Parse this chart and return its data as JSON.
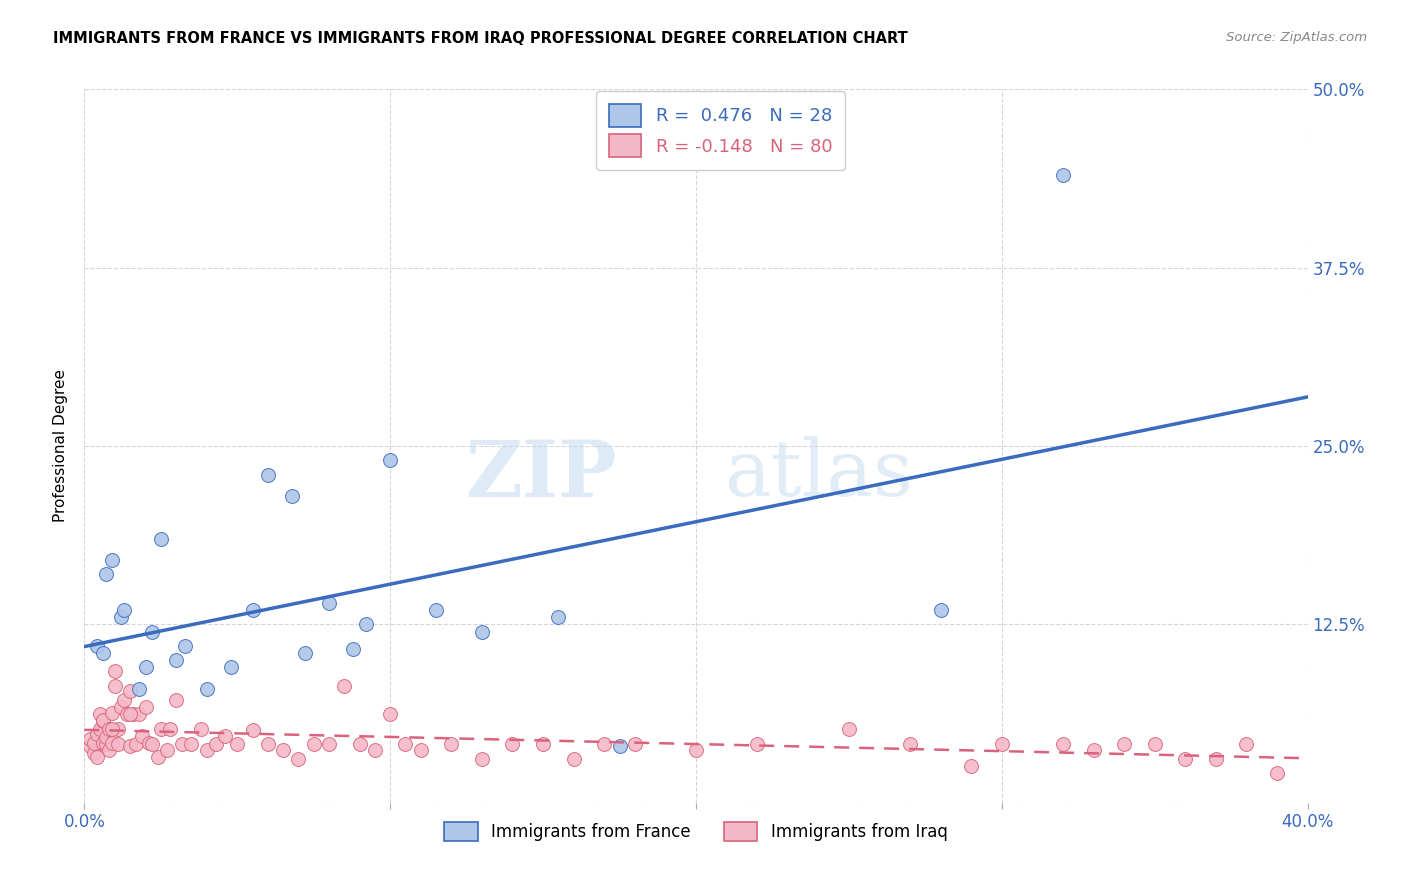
{
  "title": "IMMIGRANTS FROM FRANCE VS IMMIGRANTS FROM IRAQ PROFESSIONAL DEGREE CORRELATION CHART",
  "source": "Source: ZipAtlas.com",
  "ylabel": "Professional Degree",
  "xlim": [
    0.0,
    0.4
  ],
  "ylim": [
    0.0,
    0.5
  ],
  "xtick_vals": [
    0.0,
    0.1,
    0.2,
    0.3,
    0.4
  ],
  "ytick_vals": [
    0.0,
    0.125,
    0.25,
    0.375,
    0.5
  ],
  "ytick_labels": [
    "",
    "12.5%",
    "25.0%",
    "37.5%",
    "50.0%"
  ],
  "france_color": "#aec6e8",
  "france_line_color": "#3a6bbf",
  "iraq_color": "#f4b8c8",
  "iraq_line_color": "#d9637a",
  "france_R": 0.476,
  "france_N": 28,
  "iraq_R": -0.148,
  "iraq_N": 80,
  "france_x": [
    0.004,
    0.006,
    0.007,
    0.009,
    0.012,
    0.013,
    0.018,
    0.02,
    0.022,
    0.025,
    0.03,
    0.033,
    0.04,
    0.048,
    0.055,
    0.06,
    0.068,
    0.072,
    0.08,
    0.088,
    0.092,
    0.1,
    0.115,
    0.13,
    0.155,
    0.175,
    0.28,
    0.32
  ],
  "france_y": [
    0.11,
    0.105,
    0.16,
    0.17,
    0.13,
    0.135,
    0.08,
    0.095,
    0.12,
    0.185,
    0.1,
    0.11,
    0.08,
    0.095,
    0.135,
    0.23,
    0.215,
    0.105,
    0.14,
    0.108,
    0.125,
    0.24,
    0.135,
    0.12,
    0.13,
    0.04,
    0.135,
    0.44
  ],
  "iraq_x": [
    0.002,
    0.002,
    0.003,
    0.003,
    0.004,
    0.004,
    0.005,
    0.005,
    0.006,
    0.006,
    0.006,
    0.007,
    0.007,
    0.008,
    0.008,
    0.009,
    0.009,
    0.01,
    0.01,
    0.011,
    0.011,
    0.012,
    0.013,
    0.014,
    0.015,
    0.015,
    0.016,
    0.017,
    0.018,
    0.019,
    0.02,
    0.021,
    0.022,
    0.024,
    0.025,
    0.027,
    0.028,
    0.03,
    0.032,
    0.035,
    0.038,
    0.04,
    0.043,
    0.046,
    0.05,
    0.055,
    0.06,
    0.065,
    0.07,
    0.075,
    0.08,
    0.085,
    0.09,
    0.095,
    0.1,
    0.105,
    0.11,
    0.12,
    0.13,
    0.14,
    0.15,
    0.16,
    0.17,
    0.18,
    0.2,
    0.22,
    0.25,
    0.27,
    0.29,
    0.3,
    0.32,
    0.33,
    0.34,
    0.35,
    0.36,
    0.37,
    0.38,
    0.39,
    0.009,
    0.015
  ],
  "iraq_y": [
    0.04,
    0.045,
    0.035,
    0.042,
    0.032,
    0.048,
    0.062,
    0.052,
    0.057,
    0.042,
    0.058,
    0.041,
    0.046,
    0.037,
    0.052,
    0.042,
    0.063,
    0.082,
    0.092,
    0.041,
    0.052,
    0.067,
    0.072,
    0.062,
    0.078,
    0.04,
    0.062,
    0.041,
    0.062,
    0.047,
    0.067,
    0.042,
    0.041,
    0.032,
    0.052,
    0.037,
    0.052,
    0.072,
    0.041,
    0.041,
    0.052,
    0.037,
    0.041,
    0.047,
    0.041,
    0.051,
    0.041,
    0.037,
    0.031,
    0.041,
    0.041,
    0.082,
    0.041,
    0.037,
    0.062,
    0.041,
    0.037,
    0.041,
    0.031,
    0.041,
    0.041,
    0.031,
    0.041,
    0.041,
    0.037,
    0.041,
    0.052,
    0.041,
    0.026,
    0.041,
    0.041,
    0.037,
    0.041,
    0.041,
    0.031,
    0.031,
    0.041,
    0.021,
    0.052,
    0.062
  ]
}
